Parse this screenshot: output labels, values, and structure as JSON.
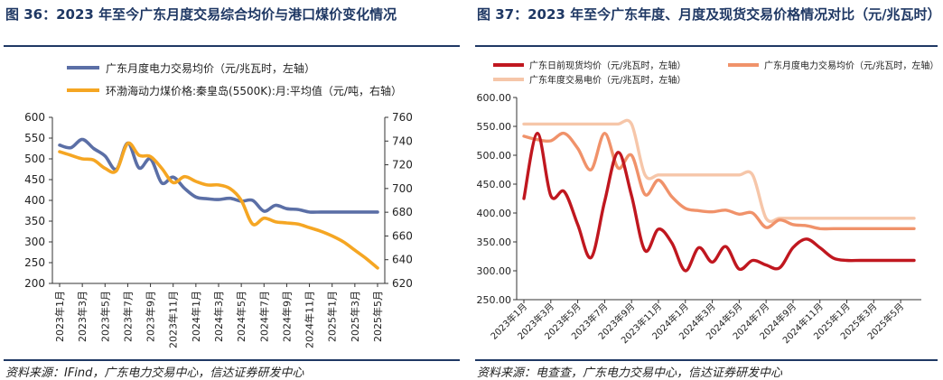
{
  "left": {
    "title": "图 36：2023 年至今广东月度交易综合均价与港口煤价变化情况",
    "source": "资料来源：IFind，广东电力交易中心，信达证券研发中心"
  },
  "right": {
    "title": "图 37：2023 年至今广东年度、月度及现货交易价格情况对比（元/兆瓦时）",
    "source": "资料来源：电查查，广东电力交易中心，信达证券研发中心"
  },
  "colors": {
    "blue": "#5b6fa6",
    "orange": "#f5a623",
    "darkred": "#c0171f",
    "salmon": "#f0926a",
    "peach": "#f6c6a9",
    "title": "#1f3864"
  },
  "chart_data": [
    {
      "type": "line",
      "categories": [
        "2023年1月",
        "2023年2月",
        "2023年3月",
        "2023年4月",
        "2023年5月",
        "2023年6月",
        "2023年7月",
        "2023年8月",
        "2023年9月",
        "2023年10月",
        "2023年11月",
        "2023年12月",
        "2024年1月",
        "2024年2月",
        "2024年3月",
        "2024年4月",
        "2024年5月",
        "2024年6月",
        "2024年7月",
        "2024年8月",
        "2024年9月",
        "2024年10月",
        "2024年11月",
        "2024年12月",
        "2025年1月",
        "2025年2月",
        "2025年3月",
        "2025年4月",
        "2025年5月"
      ],
      "tick_labels": [
        "2023年1月",
        "2023年3月",
        "2023年5月",
        "2023年7月",
        "2023年9月",
        "2023年11月",
        "2024年1月",
        "2024年3月",
        "2024年5月",
        "2024年7月",
        "2024年9月",
        "2024年11月",
        "2025年1月",
        "2025年3月",
        "2025年5月"
      ],
      "series": [
        {
          "name": "广东月度电力交易均价（元/兆瓦时，左轴）",
          "axis": "left",
          "values": [
            533,
            527,
            547,
            525,
            507,
            475,
            538,
            478,
            500,
            442,
            456,
            429,
            408,
            404,
            402,
            405,
            398,
            400,
            374,
            388,
            380,
            378,
            372,
            372,
            372,
            372,
            372,
            372,
            372
          ]
        },
        {
          "name": "环渤海动力煤价格:秦皇岛(5500K):月:平均值（元/吨，右轴）",
          "axis": "right",
          "values": [
            731,
            728,
            725,
            724,
            717,
            715,
            738,
            728,
            727,
            717,
            705,
            710,
            706,
            703,
            703,
            700,
            690,
            670,
            675,
            672,
            671,
            670,
            667,
            664,
            660,
            655,
            648,
            641,
            633
          ]
        }
      ],
      "y_left": {
        "min": 200,
        "max": 600,
        "ticks": [
          200,
          250,
          300,
          350,
          400,
          450,
          500,
          550,
          600
        ]
      },
      "y_right": {
        "min": 620,
        "max": 760,
        "ticks": [
          620,
          640,
          660,
          680,
          700,
          720,
          740,
          760
        ]
      }
    },
    {
      "type": "line",
      "categories": [
        "2023年1月",
        "2023年2月",
        "2023年3月",
        "2023年4月",
        "2023年5月",
        "2023年6月",
        "2023年7月",
        "2023年8月",
        "2023年9月",
        "2023年10月",
        "2023年11月",
        "2023年12月",
        "2024年1月",
        "2024年2月",
        "2024年3月",
        "2024年4月",
        "2024年5月",
        "2024年6月",
        "2024年7月",
        "2024年8月",
        "2024年9月",
        "2024年10月",
        "2024年11月",
        "2024年12月",
        "2025年1月",
        "2025年2月",
        "2025年3月",
        "2025年4月",
        "2025年5月",
        "2025年6月"
      ],
      "tick_labels": [
        "2023年1月",
        "2023年3月",
        "2023年5月",
        "2023年7月",
        "2023年9月",
        "2023年11月",
        "2024年1月",
        "2024年3月",
        "2024年5月",
        "2024年7月",
        "2024年9月",
        "2024年11月",
        "2025年1月",
        "2025年3月",
        "2025年5月"
      ],
      "series": [
        {
          "name": "广东日前现货均价（元/兆瓦时，左轴）",
          "values": [
            425,
            538,
            430,
            437,
            380,
            323,
            420,
            505,
            430,
            335,
            372,
            348,
            300,
            340,
            315,
            342,
            303,
            318,
            310,
            305,
            340,
            355,
            340,
            322,
            318,
            318,
            318,
            318,
            318,
            318
          ]
        },
        {
          "name": "广东月度电力交易均价（元/兆瓦时，左轴）",
          "values": [
            533,
            527,
            525,
            538,
            512,
            475,
            538,
            478,
            500,
            432,
            457,
            428,
            408,
            404,
            402,
            405,
            398,
            400,
            375,
            388,
            380,
            378,
            373,
            373,
            373,
            373,
            373,
            373,
            373,
            373
          ]
        },
        {
          "name": "广东年度交易电价（元/兆瓦时，左轴）",
          "values": [
            554,
            554,
            554,
            554,
            554,
            554,
            554,
            554,
            554,
            466,
            466,
            466,
            466,
            466,
            466,
            466,
            466,
            466,
            391,
            391,
            391,
            391,
            391,
            391,
            391,
            391,
            391,
            391,
            391,
            391
          ]
        }
      ],
      "y_left": {
        "min": 250,
        "max": 600,
        "ticks": [
          "250.00",
          "300.00",
          "350.00",
          "400.00",
          "450.00",
          "500.00",
          "550.00",
          "600.00"
        ]
      }
    }
  ]
}
